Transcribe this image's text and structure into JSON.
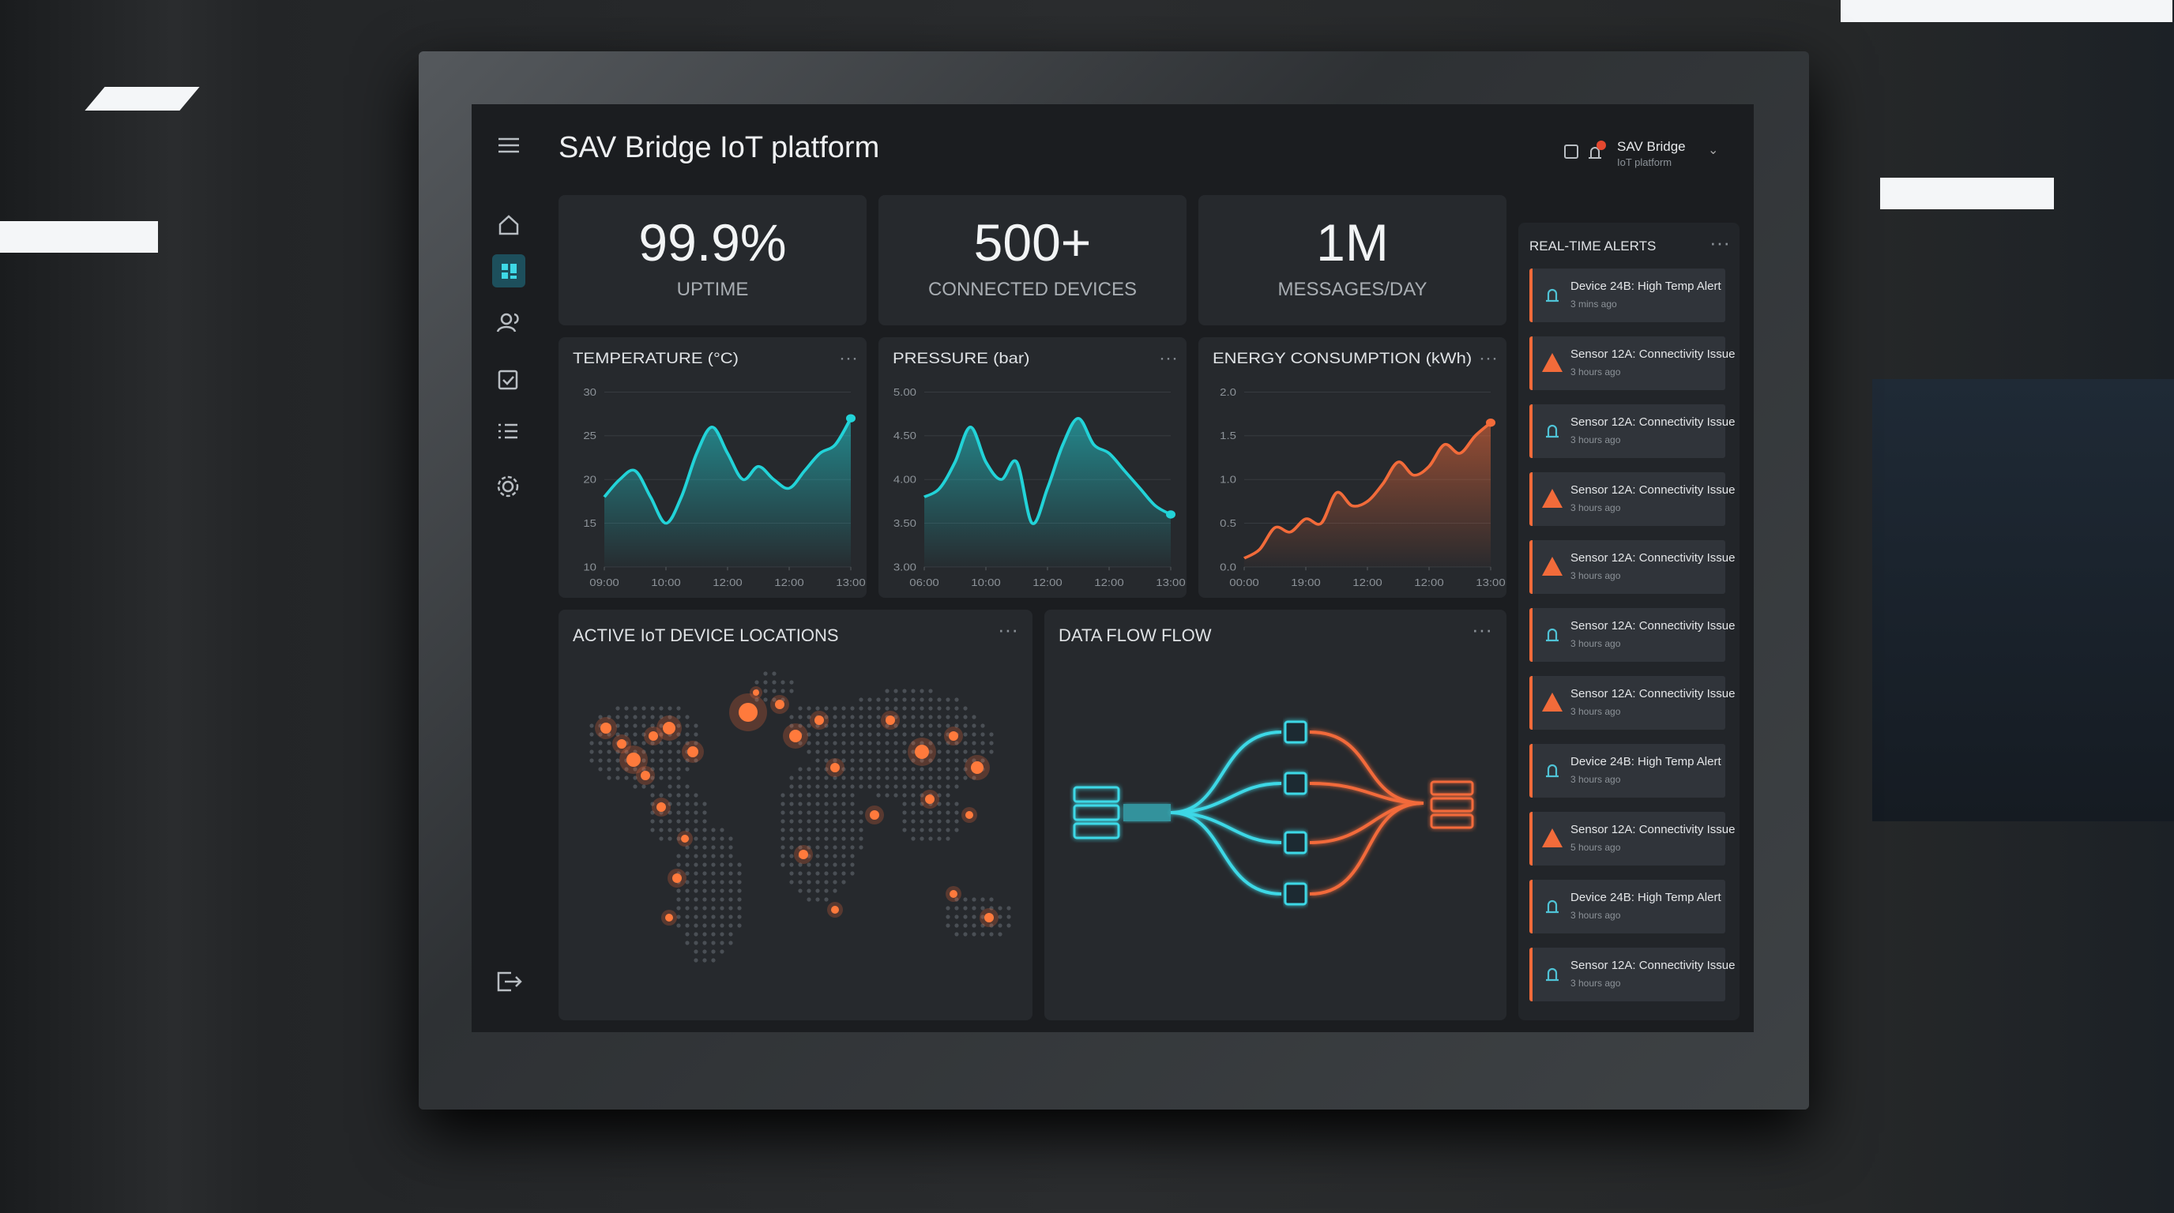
{
  "header": {
    "title": "SAV Bridge IoT platform",
    "user": {
      "name": "SAV Bridge",
      "subtitle": "IoT platform"
    }
  },
  "kpis": [
    {
      "value": "99.9%",
      "label": "UPTIME"
    },
    {
      "value": "500+",
      "label": "CONNECTED DEVICES"
    },
    {
      "value": "1M",
      "label": "MESSAGES/DAY"
    }
  ],
  "chart_data": [
    {
      "type": "line",
      "title": "TEMPERATURE (°C)",
      "ylim": [
        10,
        30
      ],
      "yticks": [
        10,
        15,
        20,
        25,
        30
      ],
      "xlim": [
        0,
        16
      ],
      "xticks": [
        {
          "value": 0,
          "label": "09:00"
        },
        {
          "value": 4,
          "label": "10:00"
        },
        {
          "value": 8,
          "label": "12:00"
        },
        {
          "value": 12,
          "label": "12:00"
        },
        {
          "value": 16,
          "label": "13:00"
        }
      ],
      "series": [
        {
          "color": "#22d3d8",
          "values": [
            18,
            20,
            21,
            18,
            15,
            18,
            23,
            26,
            23,
            20,
            21.5,
            20,
            19,
            21,
            23,
            24,
            27
          ]
        }
      ]
    },
    {
      "type": "line",
      "title": "PRESSURE (bar)",
      "ylim": [
        3,
        5
      ],
      "yticks": [
        {
          "value": 3,
          "label": "3.00"
        },
        {
          "value": 3.5,
          "label": "3.50"
        },
        {
          "value": 4,
          "label": "4.00"
        },
        {
          "value": 4.5,
          "label": "4.50"
        },
        {
          "value": 5,
          "label": "5.00"
        }
      ],
      "xlim": [
        0,
        16
      ],
      "xticks": [
        {
          "value": 0,
          "label": "06:00"
        },
        {
          "value": 4,
          "label": "10:00"
        },
        {
          "value": 8,
          "label": "12:00"
        },
        {
          "value": 12,
          "label": "12:00"
        },
        {
          "value": 16,
          "label": "13:00"
        }
      ],
      "series": [
        {
          "color": "#22d3d8",
          "values": [
            3.8,
            3.9,
            4.2,
            4.6,
            4.2,
            4.0,
            4.2,
            3.5,
            3.9,
            4.4,
            4.7,
            4.4,
            4.3,
            4.1,
            3.9,
            3.7,
            3.6
          ]
        }
      ]
    },
    {
      "type": "line",
      "title": "ENERGY CONSUMPTION (kWh)",
      "ylim": [
        0,
        2
      ],
      "yticks": [
        {
          "value": 0,
          "label": "0.0"
        },
        {
          "value": 0.5,
          "label": "0.5"
        },
        {
          "value": 1,
          "label": "1.0"
        },
        {
          "value": 1.5,
          "label": "1.5"
        },
        {
          "value": 2,
          "label": "2.0"
        }
      ],
      "xlim": [
        0,
        16
      ],
      "xticks": [
        {
          "value": 0,
          "label": "00:00"
        },
        {
          "value": 4,
          "label": "19:00"
        },
        {
          "value": 8,
          "label": "12:00"
        },
        {
          "value": 12,
          "label": "12:00"
        },
        {
          "value": 16,
          "label": "13:00"
        }
      ],
      "series": [
        {
          "color": "#f26b3a",
          "values": [
            0.1,
            0.2,
            0.45,
            0.4,
            0.55,
            0.5,
            0.85,
            0.7,
            0.75,
            0.95,
            1.2,
            1.05,
            1.15,
            1.4,
            1.3,
            1.5,
            1.65
          ]
        }
      ]
    }
  ],
  "panels": {
    "map": {
      "title": "ACTIVE IoT DEVICE LOCATIONS"
    },
    "flow": {
      "title": "DATA FLOW FLOW"
    }
  },
  "alerts": {
    "title": "REAL-TIME ALERTS",
    "items": [
      {
        "kind": "bell",
        "title": "Device 24B: High Temp Alert",
        "time": "3 mins ago"
      },
      {
        "kind": "warning",
        "title": "Sensor 12A: Connectivity Issue",
        "time": "3 hours ago"
      },
      {
        "kind": "bell",
        "title": "Sensor 12A: Connectivity Issue",
        "time": "3 hours ago"
      },
      {
        "kind": "warning",
        "title": "Sensor 12A: Connectivity Issue",
        "time": "3 hours ago"
      },
      {
        "kind": "warning",
        "title": "Sensor 12A: Connectivity Issue",
        "time": "3 hours ago"
      },
      {
        "kind": "bell",
        "title": "Sensor 12A: Connectivity Issue",
        "time": "3 hours ago"
      },
      {
        "kind": "warning",
        "title": "Sensor 12A: Connectivity Issue",
        "time": "3 hours ago"
      },
      {
        "kind": "bell",
        "title": "Device 24B: High Temp Alert",
        "time": "3 hours ago"
      },
      {
        "kind": "warning",
        "title": "Sensor 12A: Connectivity Issue",
        "time": "5 hours ago"
      },
      {
        "kind": "bell",
        "title": "Device 24B: High Temp Alert",
        "time": "3 hours ago"
      },
      {
        "kind": "bell",
        "title": "Sensor 12A: Connectivity Issue",
        "time": "3 hours ago"
      }
    ]
  }
}
